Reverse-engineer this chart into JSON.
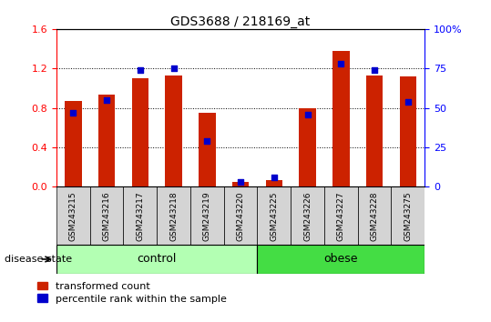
{
  "title": "GDS3688 / 218169_at",
  "samples": [
    "GSM243215",
    "GSM243216",
    "GSM243217",
    "GSM243218",
    "GSM243219",
    "GSM243220",
    "GSM243225",
    "GSM243226",
    "GSM243227",
    "GSM243228",
    "GSM243275"
  ],
  "red_values": [
    0.87,
    0.93,
    1.1,
    1.13,
    0.75,
    0.05,
    0.07,
    0.8,
    1.38,
    1.13,
    1.12
  ],
  "blue_values_pct": [
    47,
    55,
    74,
    75,
    29,
    3,
    6,
    46,
    78,
    74,
    54
  ],
  "groups": [
    {
      "label": "control",
      "start": 0,
      "end": 6,
      "color": "#b3ffb3"
    },
    {
      "label": "obese",
      "start": 6,
      "end": 11,
      "color": "#44dd44"
    }
  ],
  "ylim_left": [
    0,
    1.6
  ],
  "ylim_right": [
    0,
    100
  ],
  "yticks_left": [
    0,
    0.4,
    0.8,
    1.2,
    1.6
  ],
  "yticks_right": [
    0,
    25,
    50,
    75,
    100
  ],
  "bar_color": "#cc2200",
  "dot_color": "#0000cc",
  "bar_width": 0.5,
  "figsize": [
    5.39,
    3.54
  ],
  "dpi": 100
}
